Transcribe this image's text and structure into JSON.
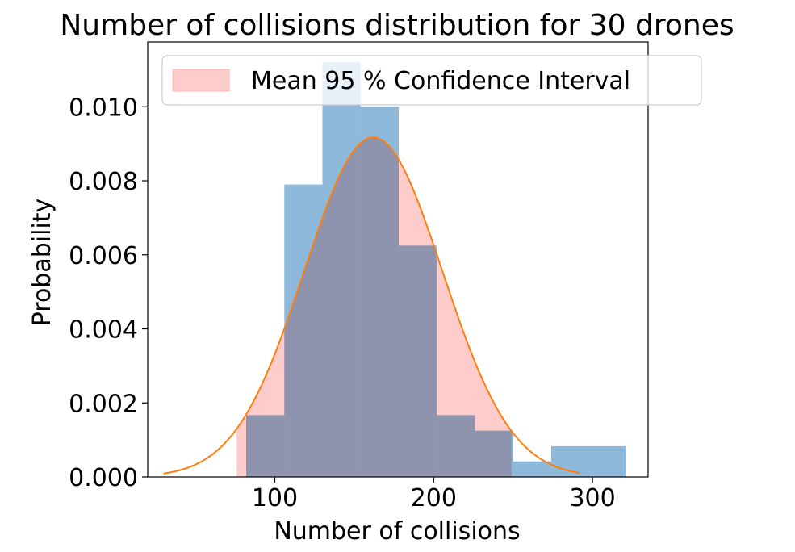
{
  "chart_data": {
    "type": "bar",
    "title": "Number of collisions distribution for 30 drones",
    "xlabel": "Number of collisions",
    "ylabel": "Probability",
    "xlim": [
      20,
      335
    ],
    "ylim": [
      0,
      0.01175
    ],
    "x_ticks": [
      100,
      200,
      300
    ],
    "x_tick_labels": [
      "100",
      "200",
      "300"
    ],
    "y_ticks": [
      0.0,
      0.002,
      0.004,
      0.006,
      0.008,
      0.01
    ],
    "y_tick_labels": [
      "0.000",
      "0.002",
      "0.004",
      "0.006",
      "0.008",
      "0.010"
    ],
    "grid": false,
    "legend_position": "top",
    "legend": [
      {
        "label": "Mean 95 % Confidence Interval",
        "color": "#ffcccc"
      }
    ],
    "series": [
      {
        "type": "histogram",
        "color": "#8cb8d9",
        "bins": [
          {
            "x0": 82,
            "x1": 106,
            "value": 0.00167
          },
          {
            "x0": 106,
            "x1": 130,
            "value": 0.0079
          },
          {
            "x0": 130,
            "x1": 154,
            "value": 0.0112
          },
          {
            "x0": 154,
            "x1": 178,
            "value": 0.01
          },
          {
            "x0": 178,
            "x1": 202,
            "value": 0.00625
          },
          {
            "x0": 202,
            "x1": 226,
            "value": 0.00167
          },
          {
            "x0": 226,
            "x1": 250,
            "value": 0.00125
          },
          {
            "x0": 250,
            "x1": 274,
            "value": 0.00042
          },
          {
            "x0": 274,
            "x1": 298,
            "value": 0.00083
          },
          {
            "x0": 298,
            "x1": 321,
            "value": 0.00083
          }
        ]
      },
      {
        "type": "line",
        "color": "#ff7f0e",
        "distribution": "normal",
        "mean": 162,
        "std": 43.5,
        "x_range": [
          30,
          292
        ]
      },
      {
        "type": "area",
        "name": "Mean 95 % Confidence Interval",
        "color": "#ffcccc",
        "x_range": [
          76,
          249
        ]
      }
    ]
  }
}
